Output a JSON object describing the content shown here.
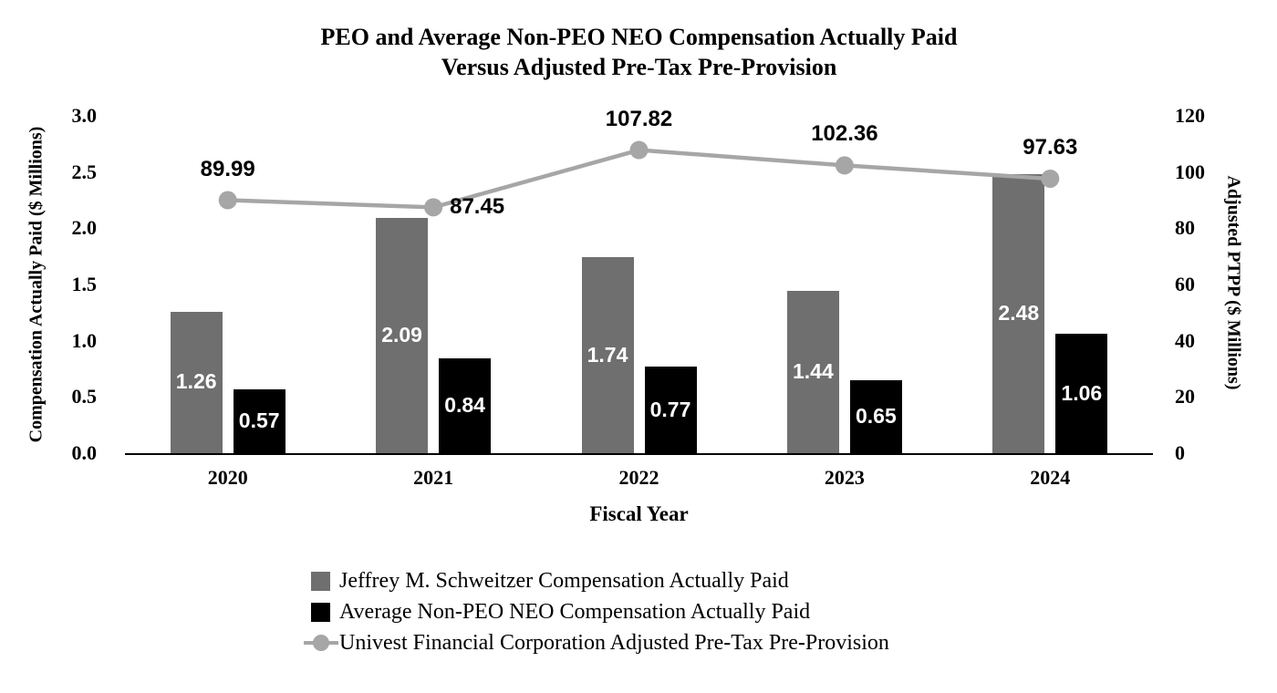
{
  "chart_data": {
    "type": "bar",
    "subtype": "combo-bar-line-dual-axis",
    "title_lines": [
      "PEO and Average Non-PEO NEO Compensation Actually Paid",
      "Versus Adjusted Pre-Tax Pre-Provision"
    ],
    "categories": [
      "2020",
      "2021",
      "2022",
      "2023",
      "2024"
    ],
    "series": [
      {
        "name": "Jeffrey M. Schweitzer Compensation Actually Paid",
        "type": "bar",
        "axis": "left",
        "color": "#6f6f6f",
        "label_color": "#ffffff",
        "values": [
          1.26,
          2.09,
          1.74,
          1.44,
          2.48
        ]
      },
      {
        "name": "Average Non-PEO NEO Compensation Actually Paid",
        "type": "bar",
        "axis": "left",
        "color": "#000000",
        "label_color": "#ffffff",
        "values": [
          0.57,
          0.84,
          0.77,
          0.65,
          1.06
        ]
      },
      {
        "name": "Univest Financial Corporation Adjusted Pre-Tax Pre-Provision",
        "type": "line",
        "axis": "right",
        "color": "#a6a6a6",
        "label_color": "#000000",
        "values": [
          89.99,
          87.45,
          107.82,
          102.36,
          97.63
        ],
        "label_placement": [
          "above",
          "right",
          "above",
          "above",
          "above"
        ]
      }
    ],
    "xlabel": "Fiscal Year",
    "ylabel_left": "Compensation Actually Paid ($ Millions)",
    "ylabel_right": "Adjusted PTPP ($ Millions)",
    "yticks_left": [
      "0.0",
      "0.5",
      "1.0",
      "1.5",
      "2.0",
      "2.5",
      "3.0"
    ],
    "yticks_right": [
      "0",
      "20",
      "40",
      "60",
      "80",
      "100",
      "120"
    ],
    "ylim_left": [
      0,
      3.0
    ],
    "ylim_right": [
      0,
      120
    ],
    "grid": false,
    "legend_position": "bottom-left",
    "axis_color": "#000000",
    "background": "#ffffff"
  }
}
